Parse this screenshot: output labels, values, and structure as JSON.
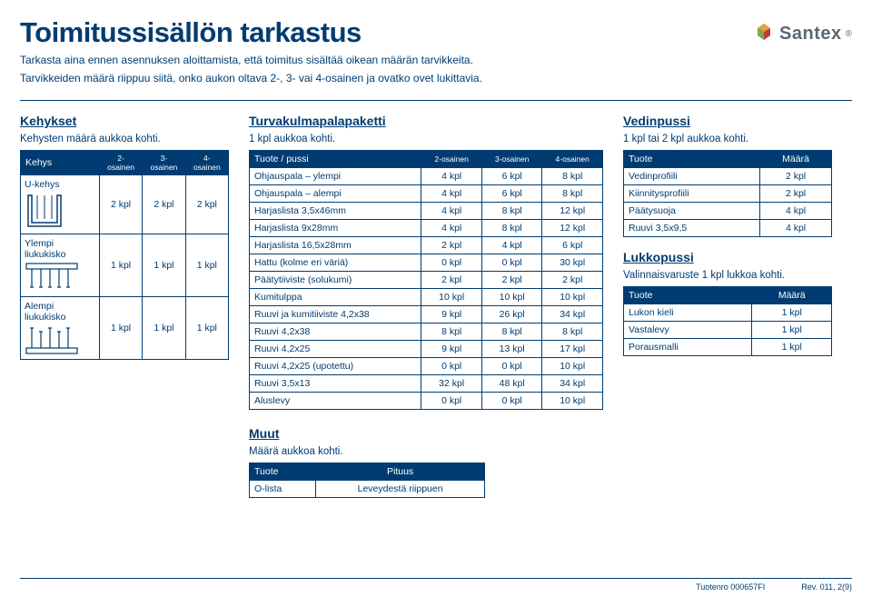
{
  "header": {
    "title": "Toimitussisällön tarkastus",
    "subtitle1": "Tarkasta aina ennen asennuksen aloittamista, että toimitus sisältää oikean määrän tarvikkeita.",
    "subtitle2": "Tarvikkeiden määrä riippuu siitä, onko aukon oltava 2-, 3- vai 4-osainen ja ovatko ovet lukittavia.",
    "brand": "Santex",
    "brand_reg": "®"
  },
  "kehykset": {
    "title": "Kehykset",
    "sub": "Kehysten määrä aukkoa kohti.",
    "cols": [
      "Kehys",
      "2-osainen",
      "3-osainen",
      "4-osainen"
    ],
    "rows": [
      {
        "label": "U-kehys",
        "vals": [
          "2 kpl",
          "2 kpl",
          "2 kpl"
        ]
      },
      {
        "label": "Ylempi liukukisko",
        "vals": [
          "1 kpl",
          "1 kpl",
          "1 kpl"
        ]
      },
      {
        "label": "Alempi liukukisko",
        "vals": [
          "1 kpl",
          "1 kpl",
          "1 kpl"
        ]
      }
    ]
  },
  "turva": {
    "title": "Turvakulmapalapaketti",
    "sub": "1 kpl aukkoa kohti.",
    "cols": [
      "Tuote / pussi",
      "2-osainen",
      "3-osainen",
      "4-osainen"
    ],
    "rows": [
      [
        "Ohjauspala – ylempi",
        "4 kpl",
        "6 kpl",
        "8 kpl"
      ],
      [
        "Ohjauspala – alempi",
        "4 kpl",
        "6 kpl",
        "8 kpl"
      ],
      [
        "Harjaslista 3,5x46mm",
        "4 kpl",
        "8 kpl",
        "12 kpl"
      ],
      [
        "Harjaslista 9x28mm",
        "4 kpl",
        "8 kpl",
        "12 kpl"
      ],
      [
        "Harjaslista 16,5x28mm",
        "2 kpl",
        "4 kpl",
        "6 kpl"
      ],
      [
        "Hattu (kolme eri väriä)",
        "0 kpl",
        "0 kpl",
        "30 kpl"
      ],
      [
        "Päätytiiviste (solukumi)",
        "2 kpl",
        "2 kpl",
        "2 kpl"
      ],
      [
        "Kumitulppa",
        "10 kpl",
        "10 kpl",
        "10 kpl"
      ],
      [
        "Ruuvi ja kumitiiviste 4,2x38",
        "9 kpl",
        "26 kpl",
        "34 kpl"
      ],
      [
        "Ruuvi 4,2x38",
        "8 kpl",
        "8 kpl",
        "8 kpl"
      ],
      [
        "Ruuvi 4,2x25",
        "9 kpl",
        "13 kpl",
        "17 kpl"
      ],
      [
        "Ruuvi 4,2x25 (upotettu)",
        "0 kpl",
        "0 kpl",
        "10 kpl"
      ],
      [
        "Ruuvi 3,5x13",
        "32 kpl",
        "48 kpl",
        "34 kpl"
      ],
      [
        "Aluslevy",
        "0 kpl",
        "0 kpl",
        "10 kpl"
      ]
    ]
  },
  "vedinpussi": {
    "title": "Vedinpussi",
    "sub": "1 kpl tai 2 kpl aukkoa kohti.",
    "cols": [
      "Tuote",
      "Määrä"
    ],
    "rows": [
      [
        "Vedinprofiili",
        "2 kpl"
      ],
      [
        "Kiinnitysprofiili",
        "2 kpl"
      ],
      [
        "Päätysuoja",
        "4 kpl"
      ],
      [
        "Ruuvi 3,5x9,5",
        "4 kpl"
      ]
    ]
  },
  "lukkopussi": {
    "title": "Lukkopussi",
    "sub": "Valinnaisvaruste 1 kpl lukkoa kohti.",
    "cols": [
      "Tuote",
      "Määrä"
    ],
    "rows": [
      [
        "Lukon kieli",
        "1 kpl"
      ],
      [
        "Vastalevy",
        "1 kpl"
      ],
      [
        "Porausmalli",
        "1 kpl"
      ]
    ]
  },
  "muut": {
    "title": "Muut",
    "sub": "Määrä aukkoa kohti.",
    "cols": [
      "Tuote",
      "Pituus"
    ],
    "rows": [
      [
        "O-lista",
        "Leveydestä riippuen"
      ]
    ]
  },
  "footer": {
    "left": "Tuotenro 000657FI",
    "right": "Rev. 011, 2(9)"
  },
  "colors": {
    "primary": "#003c71",
    "bg": "#ffffff"
  }
}
